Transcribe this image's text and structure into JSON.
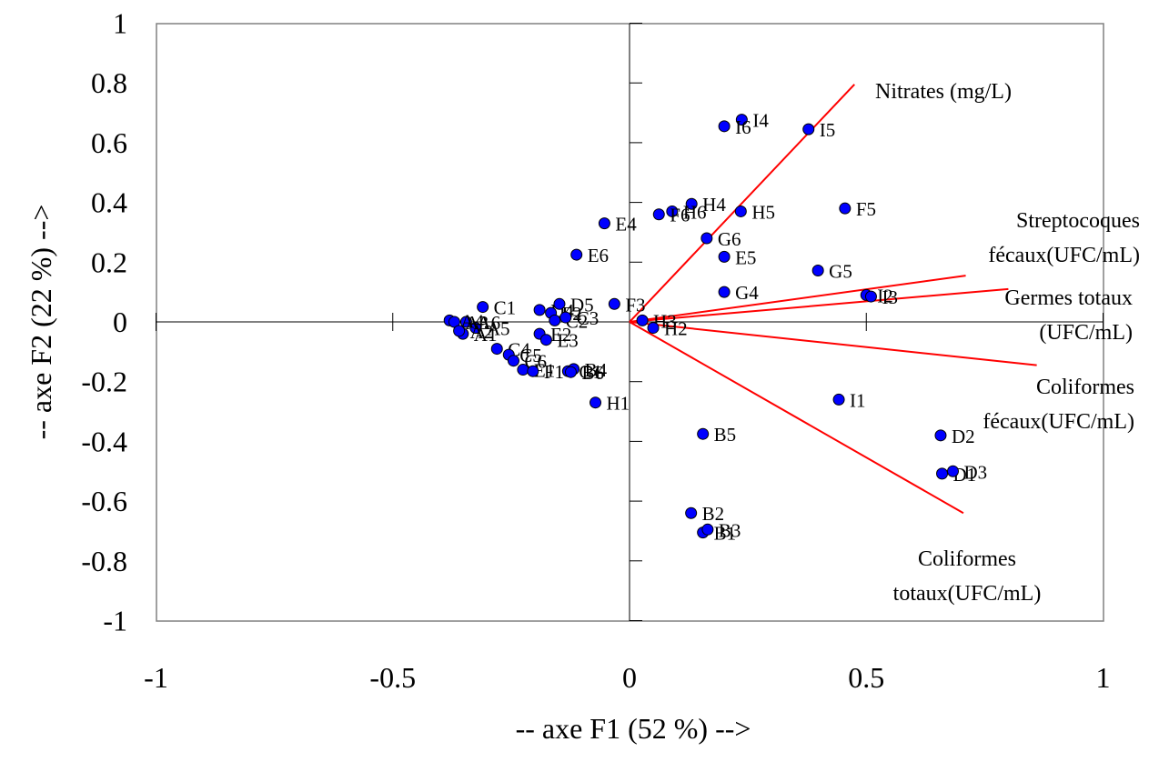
{
  "chart_data": {
    "type": "scatter",
    "title": "",
    "xlabel": "-- axe F1 (52 %) -->",
    "ylabel": "-- axe F2 (22 %) -->",
    "xlim": [
      -1,
      1
    ],
    "ylim": [
      -1,
      1
    ],
    "x_ticks": [
      "-1",
      "-0.5",
      "0",
      "0.5",
      "1"
    ],
    "y_ticks": [
      "1",
      "0.8",
      "0.6",
      "0.4",
      "0.2",
      "0",
      "-0.2",
      "-0.4",
      "-0.6",
      "-0.8",
      "-1"
    ],
    "grid": false,
    "point_color": "#0000ff",
    "vector_color": "#ff0000",
    "points": [
      {
        "label": "I4",
        "x": 0.237,
        "y": 0.677
      },
      {
        "label": "I6",
        "x": 0.2,
        "y": 0.655
      },
      {
        "label": "I5",
        "x": 0.378,
        "y": 0.645
      },
      {
        "label": "H4",
        "x": 0.131,
        "y": 0.395
      },
      {
        "label": "H6",
        "x": 0.09,
        "y": 0.37
      },
      {
        "label": "F6",
        "x": 0.062,
        "y": 0.36
      },
      {
        "label": "H5",
        "x": 0.235,
        "y": 0.37
      },
      {
        "label": "F5",
        "x": 0.455,
        "y": 0.38
      },
      {
        "label": "E4",
        "x": -0.053,
        "y": 0.33
      },
      {
        "label": "G6",
        "x": 0.163,
        "y": 0.28
      },
      {
        "label": "E6",
        "x": -0.112,
        "y": 0.225
      },
      {
        "label": "E5",
        "x": 0.2,
        "y": 0.218
      },
      {
        "label": "G5",
        "x": 0.398,
        "y": 0.172
      },
      {
        "label": "G4",
        "x": 0.2,
        "y": 0.1
      },
      {
        "label": "I2",
        "x": 0.5,
        "y": 0.09
      },
      {
        "label": "I3",
        "x": 0.51,
        "y": 0.085
      },
      {
        "label": "D4",
        "x": -0.19,
        "y": 0.04
      },
      {
        "label": "D5",
        "x": -0.148,
        "y": 0.06
      },
      {
        "label": "F3",
        "x": -0.032,
        "y": 0.06
      },
      {
        "label": "F2",
        "x": -0.166,
        "y": 0.03
      },
      {
        "label": "C2",
        "x": -0.158,
        "y": 0.005
      },
      {
        "label": "C3",
        "x": -0.135,
        "y": 0.015
      },
      {
        "label": "H3",
        "x": 0.027,
        "y": 0.005
      },
      {
        "label": "H2",
        "x": 0.05,
        "y": -0.02
      },
      {
        "label": "C1",
        "x": -0.31,
        "y": 0.05
      },
      {
        "label": "A6",
        "x": -0.345,
        "y": 0.0
      },
      {
        "label": "A5",
        "x": -0.325,
        "y": -0.02
      },
      {
        "label": "A4",
        "x": -0.38,
        "y": 0.005
      },
      {
        "label": "A3",
        "x": -0.37,
        "y": 0.0
      },
      {
        "label": "A1",
        "x": -0.352,
        "y": -0.04
      },
      {
        "label": "A2",
        "x": -0.36,
        "y": -0.03
      },
      {
        "label": "E2",
        "x": -0.19,
        "y": -0.04
      },
      {
        "label": "E3",
        "x": -0.176,
        "y": -0.06
      },
      {
        "label": "C4",
        "x": -0.28,
        "y": -0.09
      },
      {
        "label": "C5",
        "x": -0.255,
        "y": -0.11
      },
      {
        "label": "C6",
        "x": -0.245,
        "y": -0.13
      },
      {
        "label": "E1",
        "x": -0.225,
        "y": -0.16
      },
      {
        "label": "F1",
        "x": -0.204,
        "y": -0.165
      },
      {
        "label": "G1",
        "x": -0.13,
        "y": -0.165
      },
      {
        "label": "B4",
        "x": -0.118,
        "y": -0.158
      },
      {
        "label": "B6",
        "x": -0.124,
        "y": -0.168
      },
      {
        "label": "H1",
        "x": -0.072,
        "y": -0.27
      },
      {
        "label": "I1",
        "x": 0.442,
        "y": -0.26
      },
      {
        "label": "B5",
        "x": 0.155,
        "y": -0.375
      },
      {
        "label": "D2",
        "x": 0.657,
        "y": -0.38
      },
      {
        "label": "D1",
        "x": 0.66,
        "y": -0.508
      },
      {
        "label": "D3",
        "x": 0.683,
        "y": -0.5
      },
      {
        "label": "B2",
        "x": 0.13,
        "y": -0.64
      },
      {
        "label": "B1",
        "x": 0.155,
        "y": -0.705
      },
      {
        "label": "B3",
        "x": 0.165,
        "y": -0.695
      }
    ],
    "vectors": [
      {
        "label": "Nitrates (mg/L)",
        "x": 0.475,
        "y": 0.795,
        "label_lines": [
          "Nitrates (mg/L)"
        ]
      },
      {
        "label": "Streptocoques fécaux(UFC/mL)",
        "x": 0.71,
        "y": 0.155,
        "label_lines": [
          "Streptocoques",
          "fécaux(UFC/mL)"
        ]
      },
      {
        "label": "Germes totaux (UFC/mL)",
        "x": 0.8,
        "y": 0.11,
        "label_lines": [
          "Germes totaux",
          "(UFC/mL)"
        ]
      },
      {
        "label": "Coliformes fécaux(UFC/mL)",
        "x": 0.86,
        "y": -0.145,
        "label_lines": [
          "Coliformes",
          "fécaux(UFC/mL)"
        ]
      },
      {
        "label": "Coliformes totaux(UFC/mL)",
        "x": 0.705,
        "y": -0.64,
        "label_lines": [
          "Coliformes",
          "totaux(UFC/mL)"
        ]
      }
    ]
  }
}
